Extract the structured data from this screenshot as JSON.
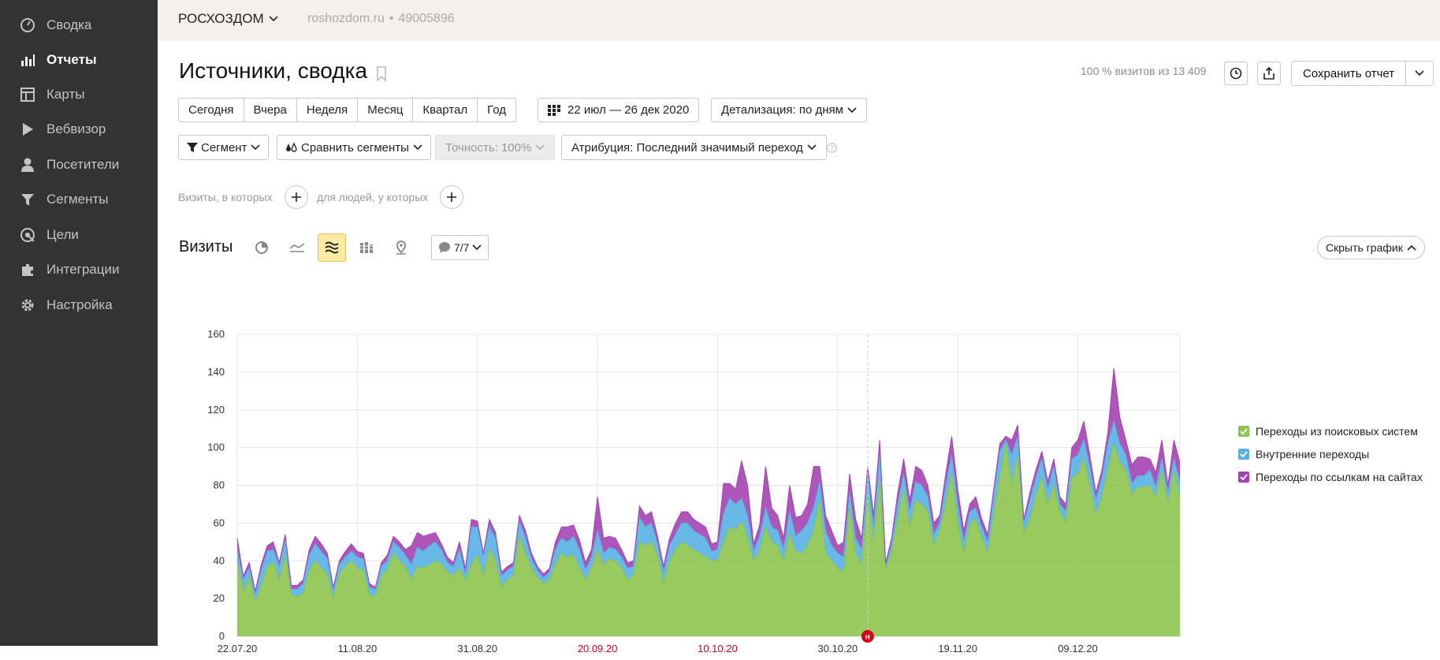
{
  "sidebar": {
    "items": [
      {
        "label": "Сводка",
        "icon": "dashboard-icon",
        "active": false
      },
      {
        "label": "Отчеты",
        "icon": "reports-icon",
        "active": true
      },
      {
        "label": "Карты",
        "icon": "maps-icon",
        "active": false
      },
      {
        "label": "Вебвизор",
        "icon": "webvisor-icon",
        "active": false
      },
      {
        "label": "Посетители",
        "icon": "visitors-icon",
        "active": false
      },
      {
        "label": "Сегменты",
        "icon": "segments-icon",
        "active": false
      },
      {
        "label": "Цели",
        "icon": "goals-icon",
        "active": false
      },
      {
        "label": "Интеграции",
        "icon": "integrations-icon",
        "active": false
      },
      {
        "label": "Настройка",
        "icon": "settings-icon",
        "active": false
      }
    ]
  },
  "topbar": {
    "counter_name": "РОСХОЗДОМ",
    "site": "roshozdom.ru",
    "separator": "•",
    "counter_id": "49005896"
  },
  "header": {
    "title": "Источники, сводка",
    "visits_share": "100 % визитов из 13 409",
    "save_label": "Сохранить отчет"
  },
  "period": {
    "buttons": [
      "Сегодня",
      "Вчера",
      "Неделя",
      "Месяц",
      "Квартал",
      "Год"
    ],
    "date_range": "22 июл — 26 дек 2020",
    "detail": "Детализация: по дням"
  },
  "filters": {
    "segment": "Сегмент",
    "compare": "Сравнить сегменты",
    "accuracy": "Точность: 100%",
    "attribution": "Атрибуция: Последний значимый переход",
    "visits_where": "Визиты, в которых",
    "people_where": "для людей, у которых"
  },
  "chart_panel": {
    "title": "Визиты",
    "comments": "7/7",
    "hide_chart": "Скрыть график",
    "marker": "н"
  },
  "colors": {
    "sidebar_bg": "#333333",
    "search": "#8dc44f",
    "internal": "#58b0e5",
    "links": "#a443b0",
    "holiday_red": "#d0021b"
  },
  "chart_data": {
    "type": "area",
    "stacked": true,
    "ylim": [
      0,
      160
    ],
    "yticks": [
      0,
      20,
      40,
      60,
      80,
      100,
      120,
      140,
      160
    ],
    "xtick_labels": [
      {
        "label": "22.07.20",
        "idx": 0,
        "red": false
      },
      {
        "label": "11.08.20",
        "idx": 20,
        "red": false
      },
      {
        "label": "31.08.20",
        "idx": 40,
        "red": false
      },
      {
        "label": "20.09.20",
        "idx": 60,
        "red": true
      },
      {
        "label": "10.10.20",
        "idx": 80,
        "red": true
      },
      {
        "label": "30.10.20",
        "idx": 100,
        "red": false
      },
      {
        "label": "19.11.20",
        "idx": 120,
        "red": false
      },
      {
        "label": "09.12.20",
        "idx": 140,
        "red": false
      }
    ],
    "num_days": 158,
    "marker_idx": 105,
    "legend_position": "right",
    "grid": true,
    "series": [
      {
        "name": "Переходы из поисковых систем",
        "color": "#8dc44f",
        "values": [
          40,
          24,
          31,
          18,
          27,
          37,
          39,
          30,
          43,
          22,
          21,
          23,
          35,
          40,
          36,
          33,
          20,
          33,
          37,
          40,
          36,
          35,
          22,
          21,
          32,
          35,
          44,
          40,
          37,
          30,
          37,
          36,
          38,
          40,
          38,
          34,
          32,
          36,
          30,
          38,
          43,
          32,
          46,
          40,
          26,
          30,
          32,
          53,
          44,
          36,
          31,
          28,
          30,
          38,
          44,
          42,
          43,
          36,
          30,
          36,
          46,
          38,
          41,
          40,
          36,
          30,
          32,
          50,
          48,
          50,
          43,
          28,
          40,
          46,
          50,
          48,
          46,
          44,
          42,
          40,
          40,
          50,
          58,
          56,
          61,
          52,
          40,
          45,
          58,
          50,
          48,
          40,
          54,
          45,
          44,
          48,
          56,
          72,
          44,
          40,
          36,
          34,
          68,
          44,
          38,
          74,
          50,
          82,
          35,
          45,
          62,
          78,
          58,
          72,
          70,
          66,
          48,
          56,
          70,
          86,
          60,
          44,
          60,
          62,
          52,
          44,
          64,
          84,
          102,
          80,
          96,
          54,
          62,
          74,
          84,
          70,
          80,
          66,
          60,
          84,
          86,
          94,
          80,
          64,
          74,
          88,
          102,
          92,
          88,
          75,
          79,
          79,
          80,
          73,
          88,
          70,
          88,
          74
        ]
      },
      {
        "name": "Внутренние переходы",
        "color": "#58b0e5",
        "values": [
          6,
          6,
          5,
          4,
          8,
          8,
          7,
          7,
          8,
          3,
          4,
          5,
          8,
          9,
          9,
          8,
          4,
          5,
          5,
          5,
          6,
          6,
          4,
          4,
          5,
          5,
          6,
          7,
          6,
          8,
          10,
          9,
          10,
          10,
          8,
          5,
          5,
          10,
          3,
          20,
          15,
          10,
          12,
          12,
          6,
          5,
          5,
          8,
          8,
          5,
          4,
          3,
          4,
          8,
          8,
          8,
          10,
          10,
          5,
          6,
          10,
          6,
          6,
          6,
          6,
          6,
          5,
          13,
          10,
          10,
          6,
          6,
          8,
          8,
          10,
          12,
          10,
          10,
          10,
          5,
          6,
          15,
          15,
          14,
          12,
          12,
          5,
          8,
          10,
          8,
          8,
          6,
          12,
          8,
          12,
          12,
          12,
          10,
          12,
          8,
          8,
          8,
          8,
          8,
          8,
          12,
          8,
          14,
          2,
          4,
          8,
          8,
          8,
          10,
          10,
          8,
          6,
          4,
          10,
          10,
          10,
          6,
          6,
          6,
          6,
          6,
          10,
          14,
          2,
          16,
          10,
          6,
          10,
          10,
          10,
          8,
          10,
          4,
          6,
          10,
          10,
          10,
          10,
          8,
          10,
          14,
          12,
          10,
          8,
          6,
          6,
          6,
          8,
          6,
          6,
          6,
          6,
          8
        ]
      },
      {
        "name": "Переходы по ссылкам на сайтах",
        "color": "#a443b0",
        "values": [
          6,
          2,
          3,
          2,
          3,
          3,
          4,
          2,
          3,
          2,
          2,
          2,
          3,
          4,
          4,
          3,
          2,
          2,
          3,
          4,
          3,
          3,
          2,
          1,
          2,
          3,
          3,
          3,
          3,
          10,
          8,
          8,
          6,
          5,
          3,
          3,
          2,
          4,
          3,
          4,
          3,
          2,
          4,
          3,
          2,
          2,
          2,
          3,
          4,
          3,
          2,
          2,
          2,
          4,
          6,
          8,
          6,
          5,
          4,
          4,
          18,
          8,
          6,
          6,
          4,
          3,
          3,
          6,
          6,
          6,
          4,
          3,
          4,
          6,
          6,
          6,
          6,
          6,
          6,
          4,
          4,
          16,
          8,
          8,
          20,
          16,
          4,
          6,
          22,
          10,
          8,
          6,
          14,
          10,
          8,
          10,
          22,
          8,
          8,
          8,
          4,
          8,
          10,
          10,
          6,
          4,
          6,
          8,
          2,
          3,
          6,
          8,
          6,
          8,
          8,
          6,
          6,
          4,
          6,
          10,
          8,
          6,
          4,
          6,
          4,
          4,
          4,
          4,
          2,
          8,
          6,
          2,
          4,
          4,
          4,
          4,
          4,
          4,
          4,
          6,
          8,
          10,
          6,
          4,
          4,
          6,
          28,
          14,
          8,
          10,
          10,
          10,
          6,
          8,
          10,
          4,
          10,
          10
        ]
      }
    ]
  }
}
